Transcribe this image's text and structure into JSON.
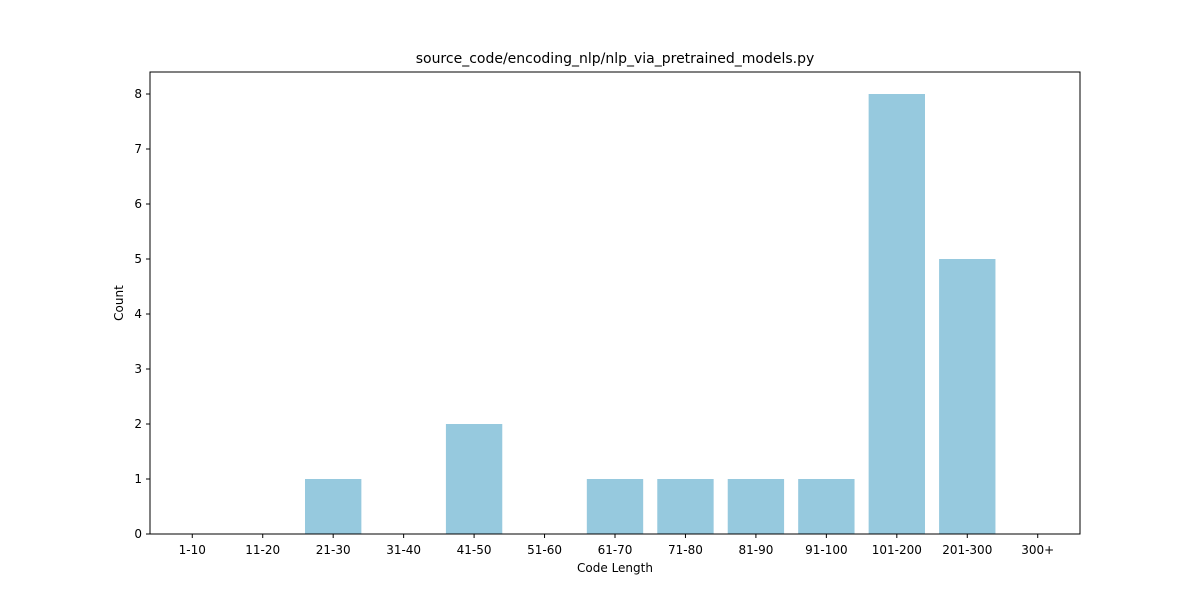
{
  "chart_data": {
    "type": "bar",
    "title": "source_code/encoding_nlp/nlp_via_pretrained_models.py",
    "xlabel": "Code Length",
    "ylabel": "Count",
    "categories": [
      "1-10",
      "11-20",
      "21-30",
      "31-40",
      "41-50",
      "51-60",
      "61-70",
      "71-80",
      "81-90",
      "91-100",
      "101-200",
      "201-300",
      "300+"
    ],
    "values": [
      0,
      0,
      1,
      0,
      2,
      0,
      1,
      1,
      1,
      1,
      8,
      5,
      0
    ],
    "ylim": [
      0,
      8.4
    ],
    "yticks": [
      0,
      1,
      2,
      3,
      4,
      5,
      6,
      7,
      8
    ],
    "grid": false,
    "legend": "none",
    "bar_color": "#96c9de"
  }
}
